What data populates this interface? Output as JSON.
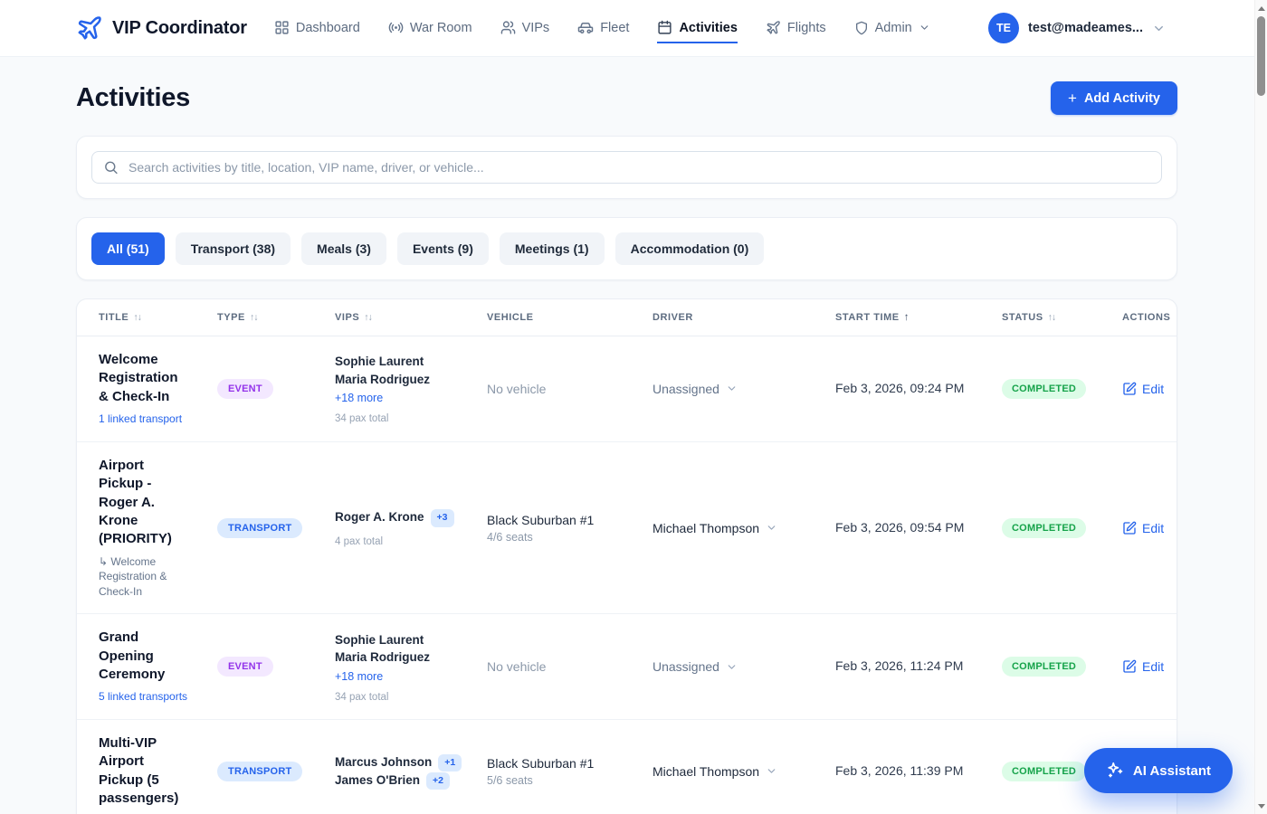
{
  "brand": "VIP Coordinator",
  "nav": {
    "items": [
      {
        "label": "Dashboard",
        "icon": "dashboard",
        "active": false,
        "chevron": false
      },
      {
        "label": "War Room",
        "icon": "broadcast",
        "active": false,
        "chevron": false
      },
      {
        "label": "VIPs",
        "icon": "people",
        "active": false,
        "chevron": false
      },
      {
        "label": "Fleet",
        "icon": "car",
        "active": false,
        "chevron": false
      },
      {
        "label": "Activities",
        "icon": "calendar",
        "active": true,
        "chevron": false
      },
      {
        "label": "Flights",
        "icon": "plane",
        "active": false,
        "chevron": false
      },
      {
        "label": "Admin",
        "icon": "shield",
        "active": false,
        "chevron": true
      }
    ]
  },
  "user": {
    "initials": "TE",
    "email": "test@madeames..."
  },
  "page": {
    "title": "Activities",
    "add_activity_label": "Add Activity",
    "plus_glyph": "+"
  },
  "search": {
    "placeholder": "Search activities by title, location, VIP name, driver, or vehicle..."
  },
  "filters": {
    "items": [
      {
        "label": "All (51)",
        "active": true
      },
      {
        "label": "Transport (38)",
        "active": false
      },
      {
        "label": "Meals (3)",
        "active": false
      },
      {
        "label": "Events (9)",
        "active": false
      },
      {
        "label": "Meetings (1)",
        "active": false
      },
      {
        "label": "Accommodation (0)",
        "active": false
      }
    ]
  },
  "table": {
    "sort_glyphs": {
      "both": "↑↓",
      "asc": "↑"
    },
    "columns": [
      {
        "label": "TITLE",
        "sort": "both"
      },
      {
        "label": "TYPE",
        "sort": "both"
      },
      {
        "label": "VIPS",
        "sort": "both"
      },
      {
        "label": "VEHICLE",
        "sort": "none"
      },
      {
        "label": "DRIVER",
        "sort": "none"
      },
      {
        "label": "START TIME",
        "sort": "asc"
      },
      {
        "label": "STATUS",
        "sort": "both"
      },
      {
        "label": "ACTIONS",
        "sort": "none"
      }
    ],
    "rows": [
      {
        "title": "Welcome Registration & Check-In",
        "sub_text": "1 linked transport",
        "sub_style": "link",
        "type_label": "EVENT",
        "type_kind": "event",
        "vips": [
          {
            "name": "Sophie Laurent"
          },
          {
            "name": "Maria Rodriguez"
          }
        ],
        "vips_more": "+18 more",
        "pax": "34 pax total",
        "vehicle_name": "No vehicle",
        "vehicle_seats": "",
        "vehicle_empty": true,
        "driver_name": "Unassigned",
        "driver_assigned": false,
        "start_time": "Feb 3, 2026, 09:24 PM",
        "status": "COMPLETED",
        "action_label": "Edit"
      },
      {
        "title": "Airport Pickup - Roger A. Krone (PRIORITY)",
        "sub_text": "↳ Welcome Registration & Check-In",
        "sub_style": "muted",
        "type_label": "TRANSPORT",
        "type_kind": "transport",
        "vips": [
          {
            "name": "Roger A. Krone",
            "badge": "+3"
          }
        ],
        "vips_more": "",
        "pax": "4 pax total",
        "vehicle_name": "Black Suburban #1",
        "vehicle_seats": "4/6 seats",
        "vehicle_empty": false,
        "driver_name": "Michael Thompson",
        "driver_assigned": true,
        "start_time": "Feb 3, 2026, 09:54 PM",
        "status": "COMPLETED",
        "action_label": "Edit"
      },
      {
        "title": "Grand Opening Ceremony",
        "sub_text": "5 linked transports",
        "sub_style": "link",
        "type_label": "EVENT",
        "type_kind": "event",
        "vips": [
          {
            "name": "Sophie Laurent"
          },
          {
            "name": "Maria Rodriguez"
          }
        ],
        "vips_more": "+18 more",
        "pax": "34 pax total",
        "vehicle_name": "No vehicle",
        "vehicle_seats": "",
        "vehicle_empty": true,
        "driver_name": "Unassigned",
        "driver_assigned": false,
        "start_time": "Feb 3, 2026, 11:24 PM",
        "status": "COMPLETED",
        "action_label": "Edit"
      },
      {
        "title": "Multi-VIP Airport Pickup (5 passengers)",
        "sub_text": "",
        "sub_style": "",
        "type_label": "TRANSPORT",
        "type_kind": "transport",
        "vips": [
          {
            "name": "Marcus Johnson",
            "badge": "+1"
          },
          {
            "name": "James O'Brien",
            "badge": "+2"
          }
        ],
        "vips_more": "",
        "pax": "",
        "vehicle_name": "Black Suburban #1",
        "vehicle_seats": "5/6 seats",
        "vehicle_empty": false,
        "driver_name": "Michael Thompson",
        "driver_assigned": true,
        "start_time": "Feb 3, 2026, 11:39 PM",
        "status": "COMPLETED",
        "action_label": "Edit"
      }
    ]
  },
  "ai_assistant": {
    "label": "AI Assistant"
  },
  "colors": {
    "accent": "#2563eb",
    "event_badge_bg": "#f3e8ff",
    "event_badge_text": "#9333ea",
    "transport_badge_bg": "#dbeafe",
    "transport_badge_text": "#2563eb",
    "status_completed_bg": "#dcfce7",
    "status_completed_text": "#16a34a",
    "page_bg": "#f8fafc"
  }
}
